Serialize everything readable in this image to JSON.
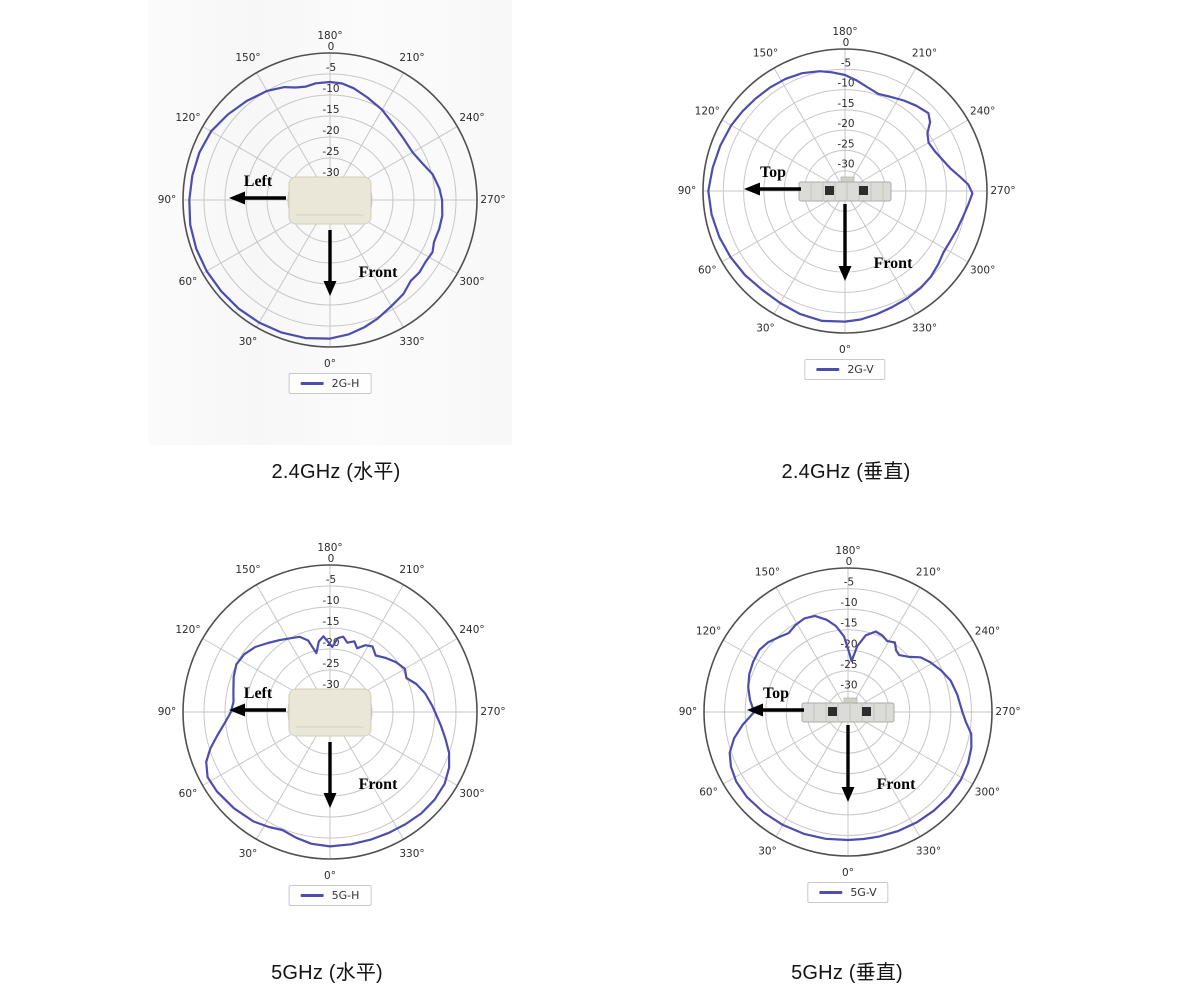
{
  "figure": {
    "background": "#ffffff",
    "accent_color": "#4d4dae",
    "grid_color": "#c7c7c7",
    "outer_ring_color": "#4f4f4f",
    "tick_text_color": "#2b2b2b"
  },
  "chart_data": [
    {
      "type": "line",
      "projection": "polar",
      "title": "2.4GHz (水平)",
      "legend_position": "bottom",
      "angle_ticks": [
        "0°",
        "30°",
        "60°",
        "90°",
        "120°",
        "150°",
        "180°",
        "210°",
        "240°",
        "270°",
        "300°",
        "330°"
      ],
      "angle_orientation": "0° at bottom, increasing clockwise (90° left, 180° top, 270° right)",
      "radial_tick_labels": [
        "0",
        "-5",
        "-10",
        "-15",
        "-20",
        "-25",
        "-30"
      ],
      "r_range": [
        -35,
        0
      ],
      "grid": true,
      "device": "router-front-view",
      "annotations": [
        {
          "text": "Left",
          "arrow_direction": "left"
        },
        {
          "text": "Front",
          "arrow_direction": "down"
        }
      ],
      "series": [
        {
          "name": "2G-H",
          "color": "#4d4dae",
          "points": [
            [
              0,
              -2.0
            ],
            [
              10,
              -1.6
            ],
            [
              20,
              -1.4
            ],
            [
              30,
              -1.3
            ],
            [
              40,
              -1.2
            ],
            [
              50,
              -1.2
            ],
            [
              60,
              -1.1
            ],
            [
              70,
              -1.1
            ],
            [
              80,
              -1.2
            ],
            [
              90,
              -1.5
            ],
            [
              100,
              -1.7
            ],
            [
              110,
              -1.9
            ],
            [
              120,
              -2.3
            ],
            [
              130,
              -3.3
            ],
            [
              140,
              -4.2
            ],
            [
              150,
              -5.0
            ],
            [
              158,
              -6.0
            ],
            [
              163,
              -7.0
            ],
            [
              168,
              -7.4
            ],
            [
              173,
              -7.0
            ],
            [
              180,
              -6.9
            ],
            [
              186,
              -7.1
            ],
            [
              192,
              -7.8
            ],
            [
              200,
              -9.0
            ],
            [
              210,
              -10.2
            ],
            [
              220,
              -11.5
            ],
            [
              230,
              -12.2
            ],
            [
              240,
              -12.3
            ],
            [
              248,
              -11.4
            ],
            [
              256,
              -9.8
            ],
            [
              264,
              -8.8
            ],
            [
              270,
              -8.3
            ],
            [
              278,
              -8.0
            ],
            [
              285,
              -8.1
            ],
            [
              292,
              -8.3
            ],
            [
              297,
              -7.6
            ],
            [
              303,
              -7.9
            ],
            [
              309,
              -7.6
            ],
            [
              315,
              -7.8
            ],
            [
              322,
              -6.6
            ],
            [
              330,
              -5.8
            ],
            [
              338,
              -4.6
            ],
            [
              345,
              -3.6
            ],
            [
              352,
              -2.7
            ]
          ]
        }
      ]
    },
    {
      "type": "line",
      "projection": "polar",
      "title": "2.4GHz (垂直)",
      "legend_position": "bottom",
      "angle_ticks": [
        "0°",
        "30°",
        "60°",
        "90°",
        "120°",
        "150°",
        "180°",
        "210°",
        "240°",
        "270°",
        "300°",
        "330°"
      ],
      "angle_orientation": "0° at bottom, increasing clockwise (90° left, 180° top, 270° right)",
      "radial_tick_labels": [
        "0",
        "-5",
        "-10",
        "-15",
        "-20",
        "-25",
        "-30"
      ],
      "r_range": [
        -35,
        0
      ],
      "grid": true,
      "device": "router-side-view",
      "annotations": [
        {
          "text": "Top",
          "arrow_direction": "left"
        },
        {
          "text": "Front",
          "arrow_direction": "down"
        }
      ],
      "series": [
        {
          "name": "2G-V",
          "color": "#4d4dae",
          "points": [
            [
              0,
              -2.8
            ],
            [
              10,
              -2.5
            ],
            [
              20,
              -2.7
            ],
            [
              30,
              -3.1
            ],
            [
              40,
              -3.2
            ],
            [
              50,
              -2.8
            ],
            [
              60,
              -2.4
            ],
            [
              70,
              -2.0
            ],
            [
              80,
              -1.6
            ],
            [
              90,
              -1.3
            ],
            [
              100,
              -1.9
            ],
            [
              110,
              -2.3
            ],
            [
              120,
              -2.6
            ],
            [
              128,
              -3.0
            ],
            [
              136,
              -3.3
            ],
            [
              144,
              -3.5
            ],
            [
              152,
              -3.7
            ],
            [
              160,
              -4.1
            ],
            [
              168,
              -4.8
            ],
            [
              174,
              -5.6
            ],
            [
              180,
              -6.4
            ],
            [
              186,
              -7.6
            ],
            [
              192,
              -8.8
            ],
            [
              199,
              -9.7
            ],
            [
              206,
              -9.2
            ],
            [
              213,
              -8.4
            ],
            [
              220,
              -7.6
            ],
            [
              227,
              -6.9
            ],
            [
              231,
              -8.0
            ],
            [
              235,
              -10.2
            ],
            [
              240,
              -11.2
            ],
            [
              246,
              -10.8
            ],
            [
              252,
              -9.8
            ],
            [
              258,
              -8.4
            ],
            [
              263,
              -6.4
            ],
            [
              267,
              -4.6
            ],
            [
              271,
              -3.6
            ],
            [
              276,
              -4.4
            ],
            [
              282,
              -5.2
            ],
            [
              289,
              -5.8
            ],
            [
              296,
              -6.3
            ],
            [
              302,
              -6.4
            ],
            [
              308,
              -5.8
            ],
            [
              315,
              -5.1
            ],
            [
              322,
              -4.7
            ],
            [
              330,
              -4.4
            ],
            [
              338,
              -4.1
            ],
            [
              346,
              -3.6
            ],
            [
              353,
              -3.1
            ]
          ]
        }
      ]
    },
    {
      "type": "line",
      "projection": "polar",
      "title": "5GHz (水平)",
      "legend_position": "bottom",
      "angle_ticks": [
        "0°",
        "30°",
        "60°",
        "90°",
        "120°",
        "150°",
        "180°",
        "210°",
        "240°",
        "270°",
        "300°",
        "330°"
      ],
      "angle_orientation": "0° at bottom, increasing clockwise (90° left, 180° top, 270° right)",
      "radial_tick_labels": [
        "0",
        "-5",
        "-10",
        "-15",
        "-20",
        "-25",
        "-30"
      ],
      "r_range": [
        -35,
        0
      ],
      "grid": true,
      "device": "router-front-view",
      "annotations": [
        {
          "text": "Left",
          "arrow_direction": "left"
        },
        {
          "text": "Front",
          "arrow_direction": "down"
        }
      ],
      "series": [
        {
          "name": "5G-H",
          "color": "#4d4dae",
          "points": [
            [
              0,
              -3.0
            ],
            [
              8,
              -3.3
            ],
            [
              15,
              -4.0
            ],
            [
              22,
              -4.7
            ],
            [
              28,
              -4.0
            ],
            [
              35,
              -3.2
            ],
            [
              45,
              -2.6
            ],
            [
              55,
              -2.1
            ],
            [
              62,
              -2.0
            ],
            [
              68,
              -3.2
            ],
            [
              73,
              -5.2
            ],
            [
              78,
              -7.5
            ],
            [
              84,
              -9.8
            ],
            [
              90,
              -11.4
            ],
            [
              96,
              -11.9
            ],
            [
              103,
              -11.4
            ],
            [
              110,
              -10.6
            ],
            [
              117,
              -10.0
            ],
            [
              124,
              -10.4
            ],
            [
              131,
              -11.4
            ],
            [
              138,
              -12.9
            ],
            [
              145,
              -14.1
            ],
            [
              152,
              -15.1
            ],
            [
              158,
              -15.7
            ],
            [
              163,
              -17.2
            ],
            [
              167,
              -20.6
            ],
            [
              171,
              -18.0
            ],
            [
              175,
              -16.9
            ],
            [
              179,
              -18.5
            ],
            [
              182,
              -19.5
            ],
            [
              186,
              -17.3
            ],
            [
              190,
              -16.8
            ],
            [
              194,
              -18.0
            ],
            [
              199,
              -17.2
            ],
            [
              203,
              -18.5
            ],
            [
              208,
              -17.0
            ],
            [
              213,
              -16.4
            ],
            [
              219,
              -17.7
            ],
            [
              226,
              -16.5
            ],
            [
              233,
              -15.3
            ],
            [
              240,
              -14.4
            ],
            [
              246,
              -15.1
            ],
            [
              252,
              -13.4
            ],
            [
              259,
              -11.9
            ],
            [
              266,
              -10.7
            ],
            [
              270,
              -10.0
            ],
            [
              277,
              -8.4
            ],
            [
              283,
              -6.8
            ],
            [
              289,
              -5.0
            ],
            [
              295,
              -3.7
            ],
            [
              302,
              -2.8
            ],
            [
              310,
              -2.5
            ],
            [
              318,
              -2.5
            ],
            [
              326,
              -2.8
            ],
            [
              334,
              -3.0
            ],
            [
              342,
              -3.1
            ],
            [
              351,
              -3.1
            ]
          ]
        }
      ]
    },
    {
      "type": "line",
      "projection": "polar",
      "title": "5GHz (垂直)",
      "legend_position": "bottom",
      "angle_ticks": [
        "0°",
        "30°",
        "60°",
        "90°",
        "120°",
        "150°",
        "180°",
        "210°",
        "240°",
        "270°",
        "300°",
        "330°"
      ],
      "angle_orientation": "0° at bottom, increasing clockwise (90° left, 180° top, 270° right)",
      "radial_tick_labels": [
        "0",
        "-5",
        "-10",
        "-15",
        "-20",
        "-25",
        "-30"
      ],
      "r_range": [
        -35,
        0
      ],
      "grid": true,
      "device": "router-side-view",
      "annotations": [
        {
          "text": "Top",
          "arrow_direction": "left"
        },
        {
          "text": "Front",
          "arrow_direction": "down"
        }
      ],
      "series": [
        {
          "name": "5G-V",
          "color": "#4d4dae",
          "points": [
            [
              0,
              -3.9
            ],
            [
              10,
              -3.7
            ],
            [
              20,
              -3.5
            ],
            [
              30,
              -3.3
            ],
            [
              40,
              -3.1
            ],
            [
              50,
              -2.9
            ],
            [
              58,
              -3.0
            ],
            [
              65,
              -3.6
            ],
            [
              71,
              -4.6
            ],
            [
              77,
              -6.6
            ],
            [
              83,
              -9.2
            ],
            [
              90,
              -12.2
            ],
            [
              97,
              -11.0
            ],
            [
              104,
              -10.0
            ],
            [
              111,
              -9.3
            ],
            [
              118,
              -8.9
            ],
            [
              125,
              -8.7
            ],
            [
              131,
              -9.2
            ],
            [
              137,
              -10.2
            ],
            [
              143,
              -11.0
            ],
            [
              149,
              -10.3
            ],
            [
              155,
              -9.9
            ],
            [
              161,
              -10.3
            ],
            [
              167,
              -12.0
            ],
            [
              172,
              -13.9
            ],
            [
              177,
              -16.6
            ],
            [
              181,
              -20.4
            ],
            [
              184,
              -22.6
            ],
            [
              188,
              -18.8
            ],
            [
              193,
              -15.9
            ],
            [
              199,
              -14.3
            ],
            [
              204,
              -14.6
            ],
            [
              209,
              -15.3
            ],
            [
              214,
              -14.6
            ],
            [
              218,
              -16.0
            ],
            [
              222,
              -16.4
            ],
            [
              228,
              -15.0
            ],
            [
              233,
              -12.9
            ],
            [
              239,
              -11.6
            ],
            [
              246,
              -10.2
            ],
            [
              253,
              -8.9
            ],
            [
              261,
              -8.1
            ],
            [
              270,
              -7.2
            ],
            [
              275,
              -6.2
            ],
            [
              280,
              -4.6
            ],
            [
              286,
              -3.8
            ],
            [
              293,
              -3.3
            ],
            [
              301,
              -3.0
            ],
            [
              310,
              -3.0
            ],
            [
              319,
              -3.2
            ],
            [
              328,
              -3.4
            ],
            [
              337,
              -3.6
            ],
            [
              346,
              -3.8
            ],
            [
              353,
              -3.9
            ]
          ]
        }
      ]
    }
  ]
}
